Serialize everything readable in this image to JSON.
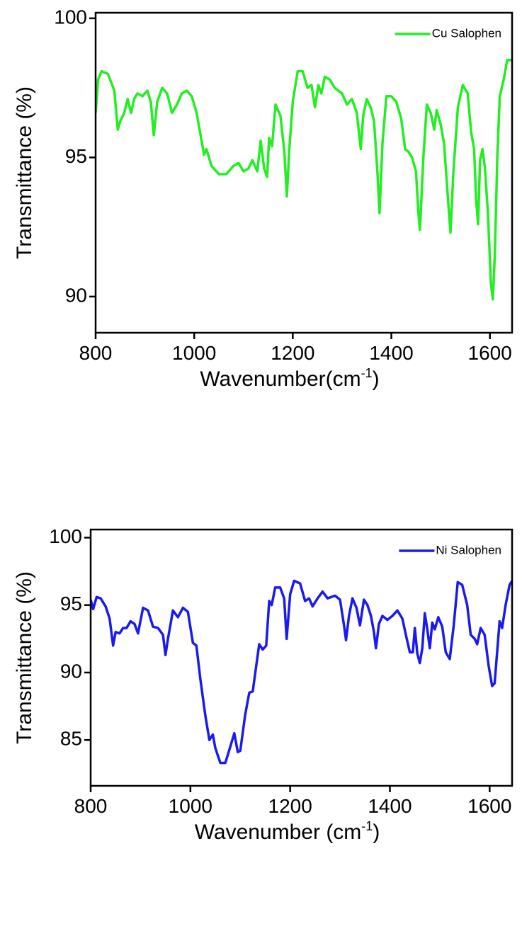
{
  "chart_data": [
    {
      "type": "line",
      "xlabel": [
        "Wavenumber(cm",
        "-1",
        ")"
      ],
      "ylabel": "Transmittance (%)",
      "xlim": [
        800,
        1645
      ],
      "xticks": [
        800,
        1000,
        1200,
        1400,
        1600
      ],
      "ylim": [
        88.7,
        100.2
      ],
      "yticks": [
        90,
        95,
        100
      ],
      "legend": "upper right",
      "x": [
        800,
        805,
        812,
        825,
        838,
        845,
        850,
        858,
        865,
        872,
        878,
        885,
        895,
        905,
        912,
        918,
        925,
        935,
        945,
        955,
        965,
        975,
        985,
        995,
        1005,
        1015,
        1020,
        1025,
        1035,
        1050,
        1065,
        1080,
        1090,
        1100,
        1110,
        1118,
        1128,
        1135,
        1142,
        1148,
        1152,
        1158,
        1165,
        1175,
        1183,
        1188,
        1193,
        1200,
        1210,
        1220,
        1230,
        1238,
        1245,
        1252,
        1258,
        1265,
        1275,
        1285,
        1300,
        1310,
        1320,
        1330,
        1338,
        1343,
        1350,
        1358,
        1365,
        1372,
        1376,
        1382,
        1390,
        1400,
        1410,
        1420,
        1428,
        1435,
        1442,
        1450,
        1455,
        1458,
        1465,
        1472,
        1480,
        1487,
        1492,
        1500,
        1507,
        1515,
        1520,
        1526,
        1535,
        1545,
        1555,
        1562,
        1568,
        1572,
        1576,
        1580,
        1585,
        1590,
        1596,
        1602,
        1606,
        1610,
        1615,
        1620,
        1628,
        1635,
        1645
      ],
      "series": [
        {
          "name": "Cu Salophen",
          "color": "#22ee22",
          "values": [
            96.6,
            97.8,
            98.1,
            98.0,
            97.4,
            96.0,
            96.3,
            96.6,
            97.1,
            96.6,
            97.1,
            97.3,
            97.2,
            97.4,
            97.0,
            95.8,
            97.0,
            97.5,
            97.3,
            96.6,
            96.9,
            97.3,
            97.4,
            97.2,
            96.6,
            95.6,
            95.1,
            95.3,
            94.7,
            94.4,
            94.4,
            94.7,
            94.8,
            94.5,
            94.6,
            94.9,
            94.5,
            95.6,
            94.6,
            94.3,
            95.7,
            95.4,
            96.9,
            96.5,
            95.2,
            93.6,
            95.3,
            97.0,
            98.1,
            98.1,
            97.5,
            97.6,
            96.8,
            97.6,
            97.3,
            97.9,
            97.8,
            97.5,
            97.3,
            96.9,
            97.1,
            96.6,
            95.3,
            96.5,
            97.1,
            96.8,
            96.3,
            94.4,
            93.0,
            95.5,
            97.2,
            97.2,
            97.0,
            96.4,
            95.3,
            95.2,
            95.0,
            94.5,
            93.0,
            92.4,
            95.0,
            96.9,
            96.6,
            96.0,
            96.7,
            96.2,
            95.5,
            93.5,
            92.3,
            94.5,
            96.8,
            97.6,
            97.3,
            95.9,
            95.3,
            93.5,
            92.6,
            94.9,
            95.3,
            94.6,
            93.0,
            90.5,
            89.9,
            91.5,
            95.0,
            97.2,
            97.8,
            98.5,
            98.5
          ]
        }
      ]
    },
    {
      "type": "line",
      "xlabel": [
        "Wavenumber (cm",
        "-1",
        ")"
      ],
      "ylabel": "Transmittance (%)",
      "xlim": [
        800,
        1645
      ],
      "xticks": [
        800,
        1000,
        1200,
        1400,
        1600
      ],
      "ylim": [
        81.6,
        100.6
      ],
      "yticks": [
        85,
        90,
        95,
        100
      ],
      "legend": "upper right",
      "x": [
        800,
        805,
        812,
        820,
        830,
        838,
        845,
        850,
        858,
        865,
        872,
        880,
        888,
        895,
        905,
        915,
        925,
        935,
        945,
        950,
        955,
        965,
        975,
        985,
        995,
        1005,
        1012,
        1020,
        1030,
        1038,
        1045,
        1050,
        1060,
        1070,
        1080,
        1088,
        1095,
        1100,
        1110,
        1118,
        1125,
        1132,
        1138,
        1145,
        1152,
        1158,
        1163,
        1170,
        1180,
        1188,
        1193,
        1200,
        1208,
        1220,
        1230,
        1238,
        1245,
        1255,
        1265,
        1275,
        1290,
        1300,
        1308,
        1312,
        1318,
        1325,
        1333,
        1340,
        1348,
        1355,
        1362,
        1368,
        1372,
        1378,
        1385,
        1395,
        1405,
        1415,
        1425,
        1432,
        1440,
        1446,
        1450,
        1455,
        1460,
        1465,
        1470,
        1475,
        1480,
        1485,
        1490,
        1497,
        1505,
        1512,
        1520,
        1528,
        1536,
        1545,
        1555,
        1562,
        1570,
        1575,
        1582,
        1590,
        1598,
        1605,
        1610,
        1615,
        1620,
        1625,
        1632,
        1640,
        1645
      ],
      "series": [
        {
          "name": "Ni Salophen",
          "color": "#1a1aee",
          "values": [
            95.4,
            94.7,
            95.6,
            95.5,
            94.9,
            94.0,
            92.0,
            93.0,
            92.9,
            93.3,
            93.3,
            93.8,
            93.6,
            92.9,
            94.8,
            94.6,
            93.4,
            93.3,
            92.8,
            91.3,
            92.5,
            94.6,
            94.1,
            94.8,
            94.5,
            92.2,
            92.0,
            89.5,
            86.8,
            85.0,
            85.4,
            84.4,
            83.3,
            83.3,
            84.5,
            85.5,
            84.1,
            84.2,
            86.9,
            88.5,
            88.6,
            90.5,
            92.1,
            91.7,
            92.0,
            95.3,
            95.0,
            96.3,
            96.3,
            95.5,
            92.5,
            95.8,
            96.8,
            96.6,
            95.3,
            95.5,
            94.9,
            95.5,
            96.0,
            95.5,
            95.7,
            95.4,
            93.5,
            92.4,
            94.2,
            95.5,
            94.8,
            93.5,
            95.4,
            95.0,
            94.2,
            93.0,
            91.8,
            93.6,
            94.2,
            93.9,
            94.2,
            94.6,
            94.0,
            92.8,
            91.5,
            91.5,
            93.3,
            91.4,
            90.7,
            91.8,
            94.4,
            93.2,
            91.8,
            93.7,
            93.2,
            94.1,
            93.4,
            91.5,
            91.0,
            93.5,
            96.7,
            96.5,
            95.0,
            92.8,
            92.5,
            92.1,
            93.3,
            92.8,
            90.5,
            89.0,
            89.2,
            91.5,
            93.8,
            93.3,
            95.0,
            96.5,
            96.8
          ]
        }
      ]
    }
  ]
}
